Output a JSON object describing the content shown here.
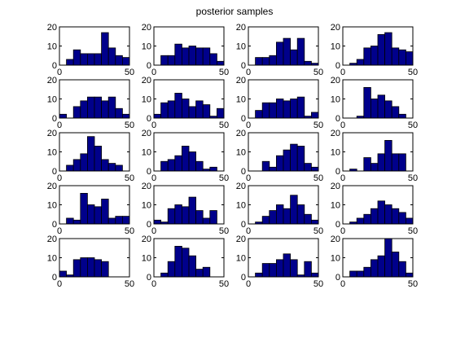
{
  "figure": {
    "title": "posterior samples",
    "bar_fill": "#00008B",
    "bar_edge": "#000000",
    "axis_color": "#000000",
    "background": "#ffffff"
  },
  "chart_data": {
    "type": "bar",
    "layout": "5x4 grid of histograms",
    "title": "posterior samples",
    "xlim": [
      0,
      50
    ],
    "ylim": [
      0,
      20
    ],
    "xticks": [
      0,
      50
    ],
    "yticks": [
      0,
      10,
      20
    ],
    "bins": 10,
    "panels": [
      {
        "edges": [
          0,
          5,
          10,
          15,
          20,
          25,
          30,
          35,
          40,
          45,
          50
        ],
        "values": [
          0,
          3,
          8,
          6,
          6,
          6,
          17,
          9,
          5,
          4
        ]
      },
      {
        "edges": [
          0,
          5,
          10,
          15,
          20,
          25,
          30,
          35,
          40,
          45,
          50
        ],
        "values": [
          0,
          5,
          5,
          11,
          9,
          10,
          9,
          9,
          6,
          2
        ]
      },
      {
        "edges": [
          0,
          5,
          10,
          15,
          20,
          25,
          30,
          35,
          40,
          45,
          50
        ],
        "values": [
          0,
          4,
          4,
          5,
          12,
          14,
          8,
          14,
          2,
          1
        ]
      },
      {
        "edges": [
          0,
          5,
          10,
          15,
          20,
          25,
          30,
          35,
          40,
          45,
          50
        ],
        "values": [
          0,
          1,
          3,
          9,
          10,
          16,
          17,
          9,
          8,
          7
        ]
      },
      {
        "edges": [
          0,
          5,
          10,
          15,
          20,
          25,
          30,
          35,
          40,
          45,
          50
        ],
        "values": [
          2,
          0,
          6,
          9,
          11,
          11,
          9,
          11,
          5,
          2
        ]
      },
      {
        "edges": [
          0,
          5,
          10,
          15,
          20,
          25,
          30,
          35,
          40,
          45,
          50
        ],
        "values": [
          2,
          8,
          9,
          13,
          10,
          6,
          9,
          7,
          1,
          5
        ]
      },
      {
        "edges": [
          0,
          5,
          10,
          15,
          20,
          25,
          30,
          35,
          40,
          45,
          50
        ],
        "values": [
          0,
          4,
          8,
          8,
          10,
          9,
          10,
          11,
          1,
          3
        ]
      },
      {
        "edges": [
          0,
          5,
          10,
          15,
          20,
          25,
          30,
          35,
          40,
          45,
          50
        ],
        "values": [
          0,
          0,
          1,
          16,
          10,
          12,
          9,
          6,
          2,
          0
        ]
      },
      {
        "edges": [
          0,
          5,
          10,
          15,
          20,
          25,
          30,
          35,
          40,
          45,
          50
        ],
        "values": [
          0,
          3,
          6,
          9,
          18,
          13,
          6,
          4,
          3,
          0
        ]
      },
      {
        "edges": [
          0,
          5,
          10,
          15,
          20,
          25,
          30,
          35,
          40,
          45,
          50
        ],
        "values": [
          0,
          5,
          6,
          8,
          13,
          10,
          5,
          1,
          2,
          0
        ]
      },
      {
        "edges": [
          0,
          5,
          10,
          15,
          20,
          25,
          30,
          35,
          40,
          45,
          50
        ],
        "values": [
          0,
          0,
          5,
          2,
          8,
          11,
          14,
          13,
          4,
          2
        ]
      },
      {
        "edges": [
          0,
          5,
          10,
          15,
          20,
          25,
          30,
          35,
          40,
          45,
          50
        ],
        "values": [
          0,
          1,
          0,
          7,
          4,
          9,
          16,
          9,
          9,
          0
        ]
      },
      {
        "edges": [
          0,
          5,
          10,
          15,
          20,
          25,
          30,
          35,
          40,
          45,
          50
        ],
        "values": [
          0,
          3,
          2,
          16,
          10,
          9,
          13,
          3,
          4,
          4
        ]
      },
      {
        "edges": [
          0,
          5,
          10,
          15,
          20,
          25,
          30,
          35,
          40,
          45,
          50
        ],
        "values": [
          2,
          1,
          8,
          10,
          9,
          14,
          7,
          3,
          7,
          0
        ]
      },
      {
        "edges": [
          0,
          5,
          10,
          15,
          20,
          25,
          30,
          35,
          40,
          45,
          50
        ],
        "values": [
          0,
          1,
          4,
          7,
          10,
          8,
          15,
          10,
          5,
          2
        ]
      },
      {
        "edges": [
          0,
          5,
          10,
          15,
          20,
          25,
          30,
          35,
          40,
          45,
          50
        ],
        "values": [
          0,
          1,
          3,
          5,
          8,
          12,
          10,
          8,
          6,
          3
        ]
      },
      {
        "edges": [
          0,
          5,
          10,
          15,
          20,
          25,
          30,
          35,
          40,
          45,
          50
        ],
        "values": [
          3,
          1,
          9,
          10,
          10,
          9,
          8,
          0,
          0,
          0
        ]
      },
      {
        "edges": [
          0,
          5,
          10,
          15,
          20,
          25,
          30,
          35,
          40,
          45,
          50
        ],
        "values": [
          0,
          2,
          8,
          16,
          15,
          11,
          4,
          5,
          0,
          0
        ]
      },
      {
        "edges": [
          0,
          5,
          10,
          15,
          20,
          25,
          30,
          35,
          40,
          45,
          50
        ],
        "values": [
          0,
          2,
          7,
          7,
          9,
          12,
          9,
          1,
          8,
          2
        ]
      },
      {
        "edges": [
          0,
          5,
          10,
          15,
          20,
          25,
          30,
          35,
          40,
          45,
          50
        ],
        "values": [
          0,
          3,
          3,
          5,
          9,
          11,
          20,
          13,
          8,
          2
        ]
      }
    ]
  }
}
